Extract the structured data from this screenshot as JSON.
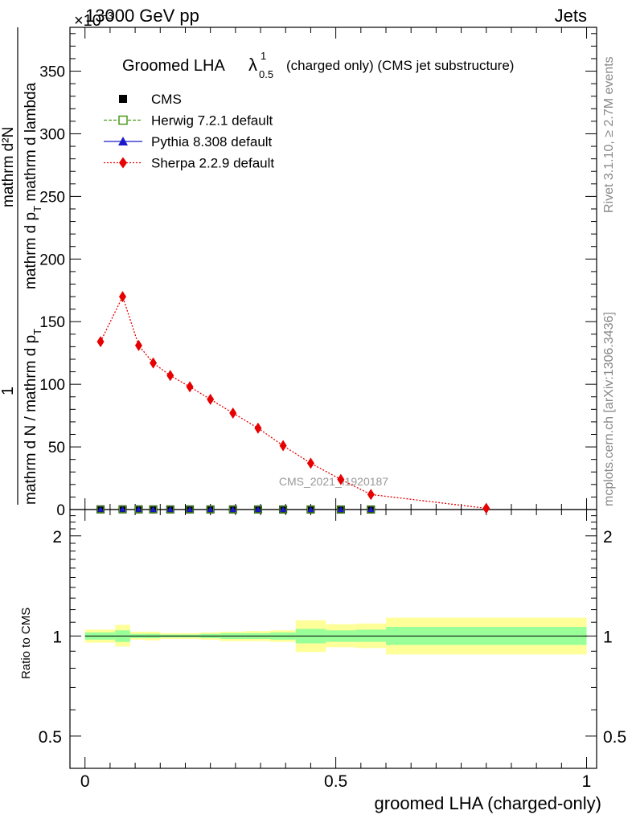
{
  "header": {
    "energy": "13000 GeV pp",
    "group": "Jets",
    "exponent_label": "×10",
    "exponent_sup": "−3"
  },
  "title": {
    "prefix": "Groomed LHA",
    "lambda": "λ",
    "lambda_sup": "1",
    "lambda_sub": "0.5",
    "suffix": "(charged only) (CMS jet substructure)"
  },
  "side_text": {
    "rivet": "Rivet 3.1.10, ≥ 2.7M events",
    "mcplots": "mcplots.cern.ch [arXiv:1306.3436]"
  },
  "watermark": "CMS_2021_I1920187",
  "legend": [
    {
      "label": "CMS",
      "color": "#000000",
      "marker": "square-filled"
    },
    {
      "label": "Herwig 7.2.1 default",
      "color": "#4a9a1a",
      "marker": "square-open"
    },
    {
      "label": "Pythia 8.308 default",
      "color": "#1a1acc",
      "marker": "triangle"
    },
    {
      "label": "Sherpa 2.2.9 default",
      "color": "#e60000",
      "marker": "diamond"
    }
  ],
  "ylabel_main": {
    "top_num": "1",
    "top_den": "mathrm d N / mathrm d p_T mathrm d p_T mathrm d lambda",
    "den_line1": "mathrm d N / mathrm d p",
    "den_line1_sub": "T",
    "den_line2": "mathrm d p",
    "den_line2_sub": "T",
    "den_line3": "mathrm d lambda",
    "num2": "mathrm d²N"
  },
  "ylabel_ratio": "Ratio to CMS",
  "xlabel": "groomed LHA (charged-only)",
  "chart_data": {
    "type": "line",
    "x": [
      0.031,
      0.075,
      0.107,
      0.136,
      0.17,
      0.209,
      0.25,
      0.295,
      0.345,
      0.395,
      0.45,
      0.51,
      0.57,
      0.8
    ],
    "ylim": [
      0,
      385
    ],
    "xlim": [
      -0.03,
      1.02
    ],
    "yticks": [
      0,
      50,
      100,
      150,
      200,
      250,
      300,
      350
    ],
    "xticks": [
      0,
      0.5,
      1
    ],
    "xtick_labels": [
      "0",
      "0.5",
      "1"
    ],
    "series": [
      {
        "name": "CMS",
        "values": [
          0.13,
          0.17,
          0.13,
          0.12,
          0.11,
          0.1,
          0.09,
          0.08,
          0.07,
          0.05,
          0.04,
          0.02,
          0.01,
          0.001
        ]
      },
      {
        "name": "Sherpa 2.2.9 default",
        "values": [
          134,
          170,
          131,
          117,
          107,
          98,
          88,
          77,
          65,
          51,
          37,
          24,
          12,
          1
        ]
      }
    ],
    "ratio": {
      "ylim_log": [
        0.4,
        2.4
      ],
      "yticks": [
        0.5,
        1,
        2
      ],
      "ytick_labels": [
        "0.5",
        "1",
        "2"
      ],
      "bins": [
        {
          "lo": 0.0,
          "hi": 0.06,
          "inner": [
            0.975,
            1.025
          ],
          "outer": [
            0.955,
            1.045
          ]
        },
        {
          "lo": 0.06,
          "hi": 0.09,
          "inner": [
            0.96,
            1.04
          ],
          "outer": [
            0.93,
            1.08
          ]
        },
        {
          "lo": 0.09,
          "hi": 0.12,
          "inner": [
            0.985,
            1.015
          ],
          "outer": [
            0.975,
            1.03
          ]
        },
        {
          "lo": 0.12,
          "hi": 0.15,
          "inner": [
            0.985,
            1.015
          ],
          "outer": [
            0.97,
            1.03
          ]
        },
        {
          "lo": 0.15,
          "hi": 0.19,
          "inner": [
            0.99,
            1.01
          ],
          "outer": [
            0.98,
            1.02
          ]
        },
        {
          "lo": 0.19,
          "hi": 0.23,
          "inner": [
            0.99,
            1.01
          ],
          "outer": [
            0.98,
            1.02
          ]
        },
        {
          "lo": 0.23,
          "hi": 0.27,
          "inner": [
            0.985,
            1.015
          ],
          "outer": [
            0.975,
            1.025
          ]
        },
        {
          "lo": 0.27,
          "hi": 0.32,
          "inner": [
            0.98,
            1.02
          ],
          "outer": [
            0.965,
            1.03
          ]
        },
        {
          "lo": 0.32,
          "hi": 0.37,
          "inner": [
            0.98,
            1.02
          ],
          "outer": [
            0.965,
            1.035
          ]
        },
        {
          "lo": 0.37,
          "hi": 0.42,
          "inner": [
            0.975,
            1.025
          ],
          "outer": [
            0.96,
            1.04
          ]
        },
        {
          "lo": 0.42,
          "hi": 0.48,
          "inner": [
            0.95,
            1.05
          ],
          "outer": [
            0.895,
            1.115
          ]
        },
        {
          "lo": 0.48,
          "hi": 0.54,
          "inner": [
            0.96,
            1.04
          ],
          "outer": [
            0.925,
            1.085
          ]
        },
        {
          "lo": 0.54,
          "hi": 0.6,
          "inner": [
            0.96,
            1.045
          ],
          "outer": [
            0.92,
            1.09
          ]
        },
        {
          "lo": 0.6,
          "hi": 1.0,
          "inner": [
            0.94,
            1.065
          ],
          "outer": [
            0.88,
            1.135
          ]
        }
      ],
      "colors": {
        "inner": "#99ff99",
        "outer": "#ffff99"
      }
    }
  }
}
